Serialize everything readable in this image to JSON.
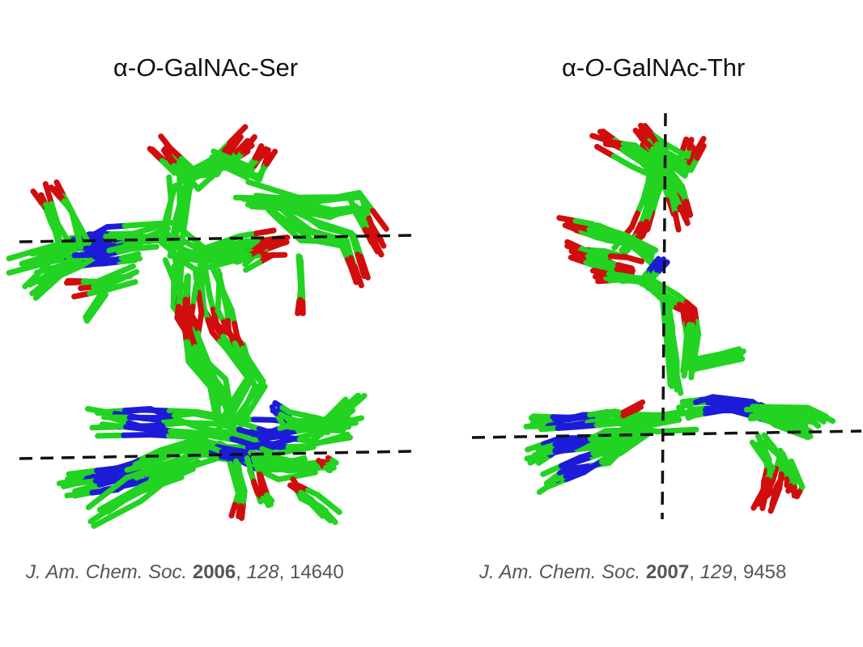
{
  "colors": {
    "carbon": "#22d322",
    "oxygen": "#d10d0d",
    "nitrogen": "#1c1cd8",
    "axis": "#111111",
    "title": "#111111",
    "citation": "#555555"
  },
  "left_panel": {
    "title": {
      "greek": "α",
      "dash1": "-",
      "atom": "O",
      "rest": "-GalNAc-Ser"
    },
    "citation": {
      "journal": "J. Am. Chem. Soc.",
      "year": "2006",
      "sep1": ",",
      "volume": "128",
      "sep2": ",",
      "page": "14640"
    }
  },
  "right_panel": {
    "title": {
      "greek": "α",
      "dash1": "-",
      "atom": "O",
      "rest": "-GalNAc-Thr"
    },
    "citation": {
      "journal": "J. Am. Chem. Soc.",
      "year": "2007",
      "sep1": ",",
      "volume": "129",
      "sep2": ",",
      "page": "9458"
    }
  }
}
